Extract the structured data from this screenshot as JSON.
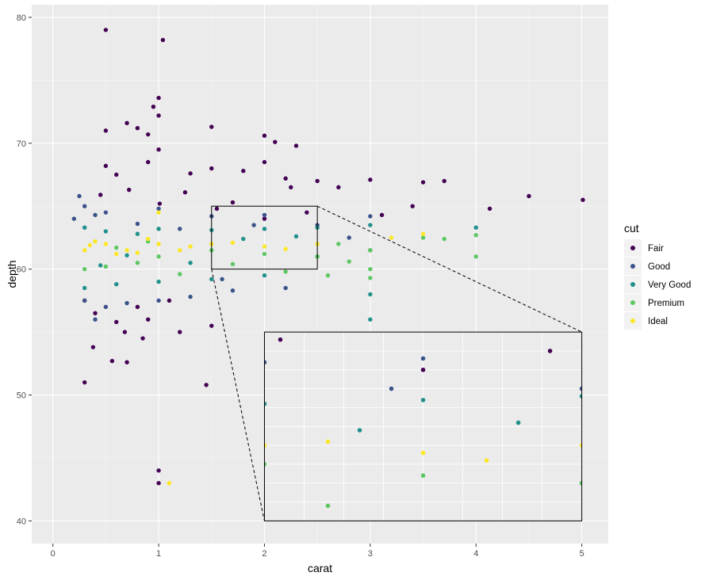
{
  "chart_data": {
    "type": "scatter",
    "title": "",
    "xlabel": "carat",
    "ylabel": "depth",
    "xlim": [
      -0.2,
      5.25
    ],
    "ylim": [
      38.2,
      81.0
    ],
    "x_ticks": [
      0,
      1,
      2,
      3,
      4,
      5
    ],
    "y_ticks": [
      40,
      50,
      60,
      70,
      80
    ],
    "grid": true,
    "legend": {
      "title": "cut",
      "position": "right",
      "entries": [
        {
          "name": "Fair",
          "color": "#440154"
        },
        {
          "name": "Good",
          "color": "#3b528b"
        },
        {
          "name": "Very Good",
          "color": "#21908c"
        },
        {
          "name": "Premium",
          "color": "#5dc863"
        },
        {
          "name": "Ideal",
          "color": "#fde725"
        }
      ]
    },
    "zoom_region": {
      "x": [
        1.5,
        2.5
      ],
      "y": [
        60,
        65
      ]
    },
    "zoom_inset": {
      "x": [
        2.0,
        5.0
      ],
      "y": [
        40,
        55
      ]
    },
    "series": [
      {
        "name": "Fair",
        "color": "#440154",
        "points": [
          [
            0.5,
            79
          ],
          [
            1.04,
            78.2
          ],
          [
            1.0,
            73.6
          ],
          [
            0.95,
            72.9
          ],
          [
            1.5,
            71.3
          ],
          [
            1.0,
            72.2
          ],
          [
            0.7,
            71.6
          ],
          [
            0.5,
            71
          ],
          [
            0.8,
            71.2
          ],
          [
            2.0,
            70.6
          ],
          [
            0.9,
            70.7
          ],
          [
            3.0,
            67.1
          ],
          [
            3.5,
            66.9
          ],
          [
            3.7,
            67
          ],
          [
            4.5,
            65.8
          ],
          [
            5.01,
            65.5
          ],
          [
            4.13,
            64.8
          ],
          [
            3.11,
            64.3
          ],
          [
            3.4,
            65
          ],
          [
            2.5,
            67
          ],
          [
            2.7,
            66.5
          ],
          [
            1.0,
            44
          ],
          [
            1.0,
            43
          ],
          [
            0.3,
            51
          ],
          [
            0.38,
            53.8
          ],
          [
            0.56,
            52.7
          ],
          [
            0.7,
            52.6
          ],
          [
            1.45,
            50.8
          ],
          [
            0.85,
            54.5
          ],
          [
            0.68,
            55
          ],
          [
            0.9,
            56
          ],
          [
            1.2,
            55
          ],
          [
            1.5,
            55.5
          ],
          [
            0.3,
            57.5
          ],
          [
            0.4,
            56.5
          ],
          [
            0.6,
            55.8
          ],
          [
            0.8,
            57
          ],
          [
            1.1,
            57.5
          ],
          [
            0.9,
            68.5
          ],
          [
            1.0,
            69.5
          ],
          [
            1.5,
            68
          ],
          [
            2.0,
            68.5
          ],
          [
            2.2,
            67.2
          ],
          [
            0.5,
            68.2
          ],
          [
            0.6,
            67.5
          ],
          [
            2.4,
            64.5
          ],
          [
            2.0,
            64
          ],
          [
            1.55,
            64.8
          ],
          [
            1.25,
            66.1
          ],
          [
            1.7,
            65.3
          ],
          [
            2.25,
            66.5
          ],
          [
            1.01,
            65.2
          ],
          [
            0.72,
            66.3
          ],
          [
            0.45,
            65.9
          ],
          [
            1.8,
            67.8
          ],
          [
            2.1,
            70.1
          ],
          [
            2.3,
            69.8
          ],
          [
            1.3,
            67.6
          ]
        ]
      },
      {
        "name": "Good",
        "color": "#3b528b",
        "points": [
          [
            0.25,
            65.8
          ],
          [
            0.3,
            65
          ],
          [
            0.5,
            64.5
          ],
          [
            1.0,
            64.8
          ],
          [
            1.5,
            64.2
          ],
          [
            2.0,
            64.3
          ],
          [
            2.5,
            63.5
          ],
          [
            3.0,
            64.2
          ],
          [
            0.3,
            57.5
          ],
          [
            0.5,
            57
          ],
          [
            0.7,
            57.3
          ],
          [
            1.0,
            57.5
          ],
          [
            1.3,
            57.8
          ],
          [
            1.7,
            58.3
          ],
          [
            2.2,
            58.5
          ],
          [
            0.4,
            56
          ],
          [
            0.2,
            64
          ],
          [
            2.8,
            62.5
          ],
          [
            3.0,
            61.5
          ],
          [
            1.9,
            63.5
          ],
          [
            1.2,
            63.2
          ],
          [
            0.8,
            63.6
          ],
          [
            0.4,
            64.3
          ],
          [
            1.6,
            59.2
          ]
        ]
      },
      {
        "name": "Very Good",
        "color": "#21908c",
        "points": [
          [
            0.3,
            63.3
          ],
          [
            0.5,
            63
          ],
          [
            0.8,
            62.8
          ],
          [
            1.0,
            63.2
          ],
          [
            1.5,
            63.1
          ],
          [
            2.0,
            63.2
          ],
          [
            2.5,
            63.3
          ],
          [
            3.0,
            63.5
          ],
          [
            3.0,
            58
          ],
          [
            3.0,
            56
          ],
          [
            4.0,
            63.3
          ],
          [
            0.3,
            58.5
          ],
          [
            0.6,
            58.8
          ],
          [
            1.0,
            59
          ],
          [
            1.5,
            59.2
          ],
          [
            2.0,
            59.5
          ],
          [
            2.5,
            61
          ],
          [
            1.3,
            60.5
          ],
          [
            0.7,
            61.1
          ],
          [
            1.8,
            62.4
          ],
          [
            2.3,
            62.6
          ],
          [
            0.45,
            60.3
          ]
        ]
      },
      {
        "name": "Premium",
        "color": "#5dc863",
        "points": [
          [
            0.3,
            60
          ],
          [
            0.5,
            60.2
          ],
          [
            0.8,
            60.5
          ],
          [
            1.0,
            61
          ],
          [
            1.5,
            61.5
          ],
          [
            2.0,
            61.2
          ],
          [
            2.5,
            61
          ],
          [
            2.7,
            62
          ],
          [
            3.0,
            61.5
          ],
          [
            3.0,
            60
          ],
          [
            3.0,
            59.3
          ],
          [
            3.5,
            62.5
          ],
          [
            3.7,
            62.4
          ],
          [
            4.0,
            62.7
          ],
          [
            4.0,
            61
          ],
          [
            2.6,
            59.5
          ],
          [
            1.2,
            59.6
          ],
          [
            0.6,
            61.7
          ],
          [
            1.7,
            60.4
          ],
          [
            2.2,
            59.8
          ],
          [
            0.9,
            62.2
          ],
          [
            2.8,
            60.6
          ]
        ]
      },
      {
        "name": "Ideal",
        "color": "#fde725",
        "points": [
          [
            0.3,
            61.5
          ],
          [
            0.5,
            62
          ],
          [
            0.7,
            61.5
          ],
          [
            1.0,
            62
          ],
          [
            1.2,
            61.5
          ],
          [
            1.5,
            62
          ],
          [
            2.0,
            61.8
          ],
          [
            2.5,
            62
          ],
          [
            3.2,
            62.5
          ],
          [
            3.5,
            62.8
          ],
          [
            1.1,
            43
          ],
          [
            1.0,
            64.5
          ],
          [
            0.4,
            62.2
          ],
          [
            0.6,
            61.2
          ],
          [
            0.9,
            62.4
          ],
          [
            1.3,
            61.8
          ],
          [
            1.7,
            62.1
          ],
          [
            2.2,
            61.6
          ],
          [
            0.35,
            61.9
          ],
          [
            0.8,
            61.3
          ]
        ]
      }
    ]
  }
}
